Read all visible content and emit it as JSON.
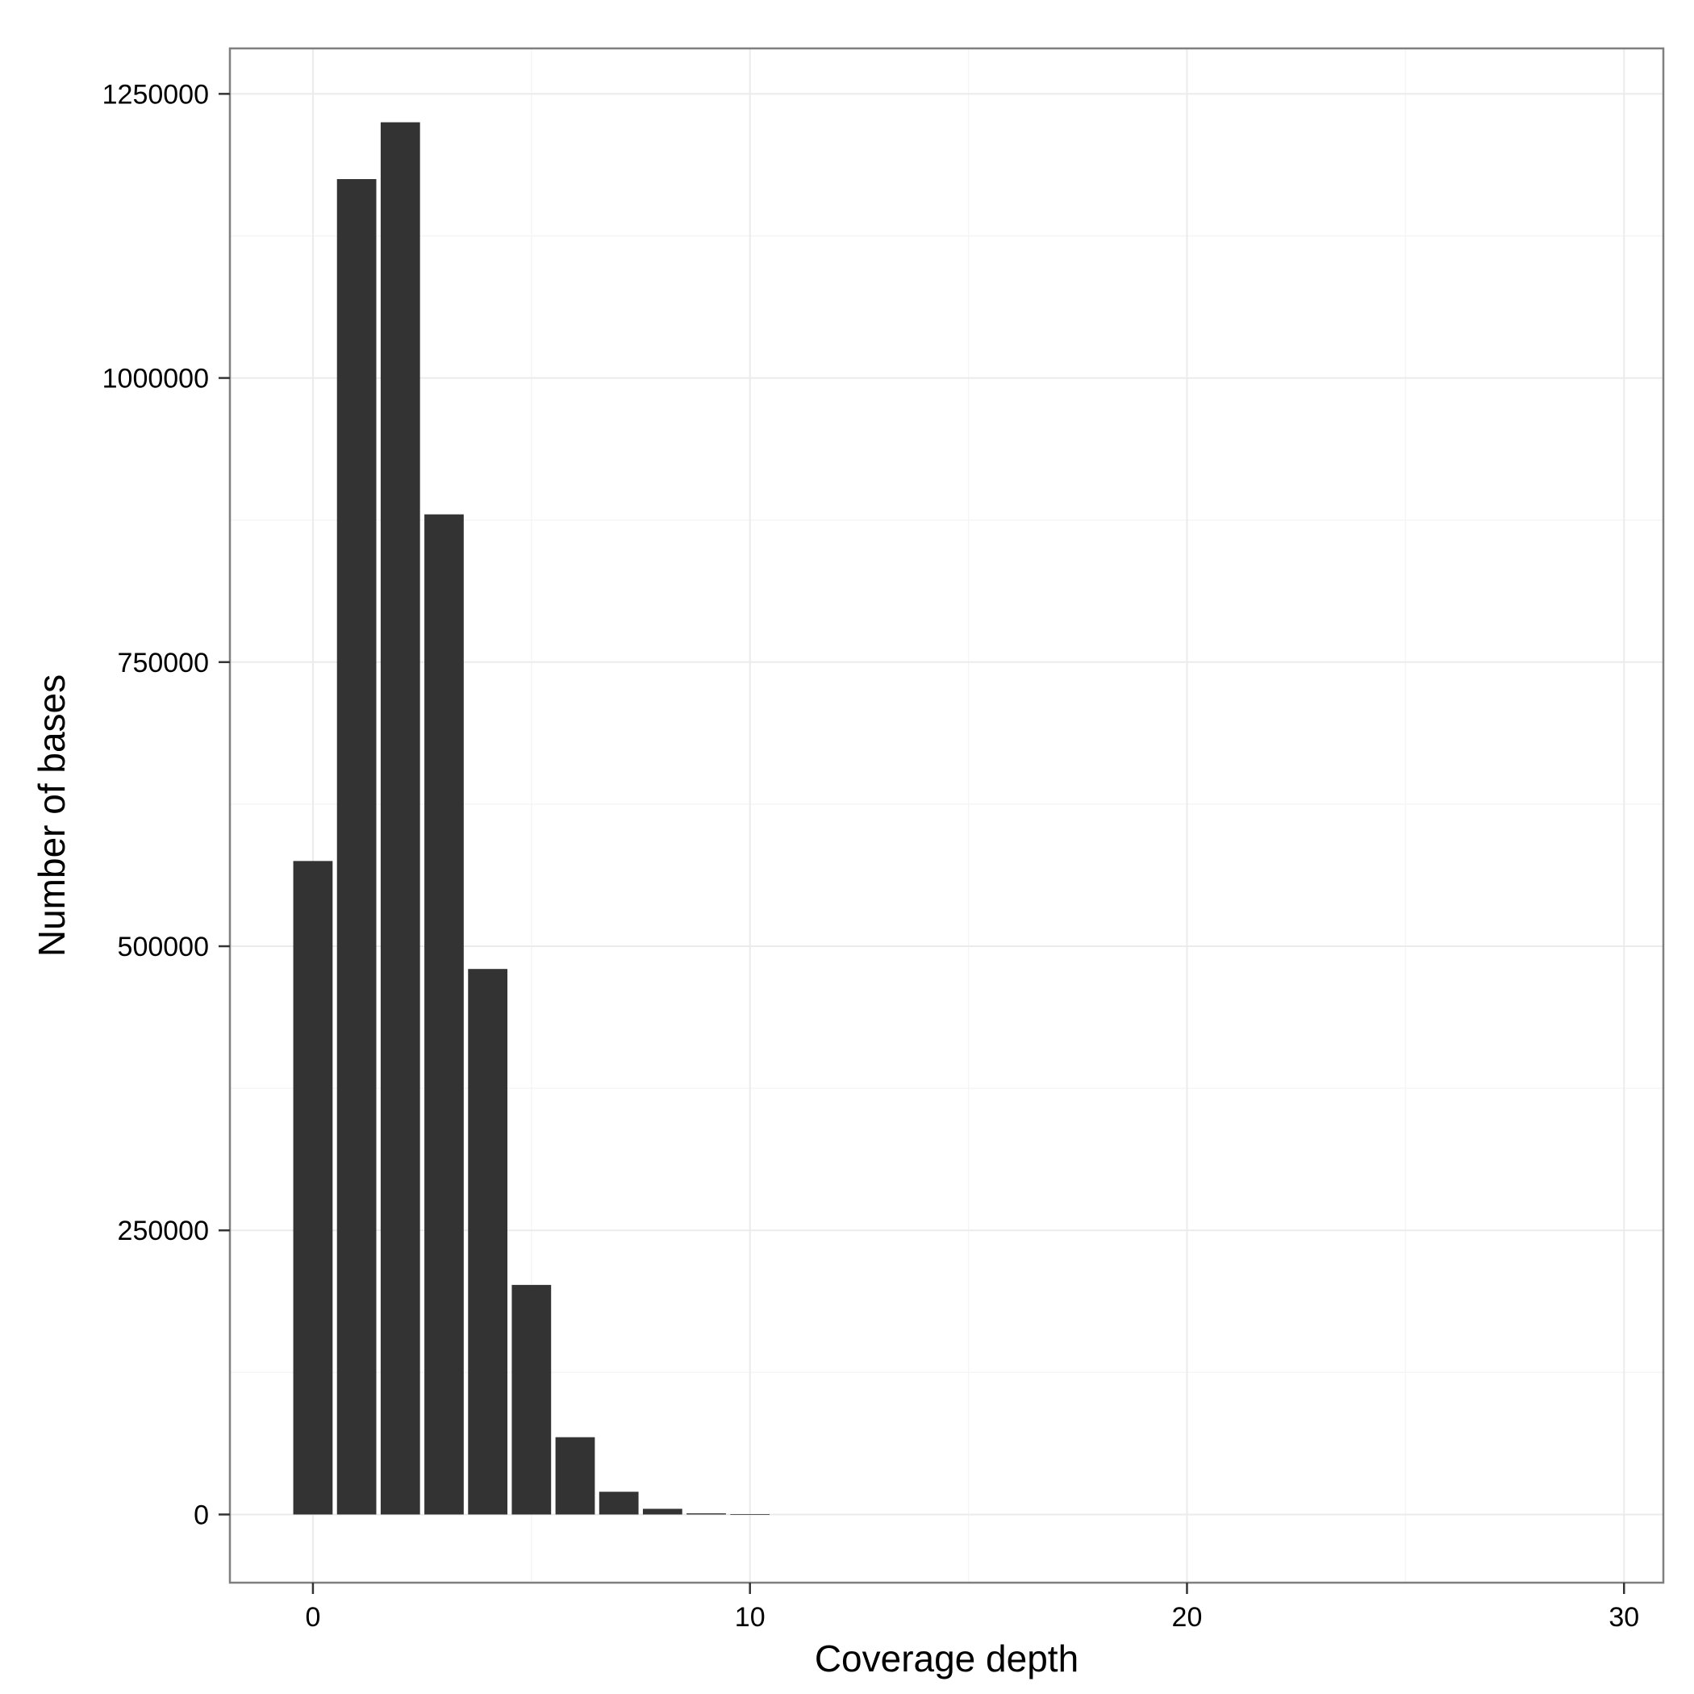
{
  "chart_data": {
    "type": "bar",
    "title": "",
    "xlabel": "Coverage depth",
    "ylabel": "Number of bases",
    "xlim": [
      -1.9,
      30.9
    ],
    "ylim": [
      -60000,
      1290000
    ],
    "x_ticks": [
      0,
      10,
      20,
      30
    ],
    "x_tick_labels": [
      "0",
      "10",
      "20",
      "30"
    ],
    "y_ticks": [
      0,
      250000,
      500000,
      750000,
      1000000,
      1250000
    ],
    "y_tick_labels": [
      "0",
      "250000",
      "500000",
      "750000",
      "1000000",
      "1250000"
    ],
    "grid": true,
    "legend": "none",
    "bar_width": 0.9,
    "x": [
      0,
      1,
      2,
      3,
      4,
      5,
      6,
      7,
      8,
      9,
      10
    ],
    "values": [
      575000,
      1175000,
      1225000,
      880000,
      480000,
      202000,
      68000,
      20000,
      5000,
      1000,
      300
    ],
    "colors": {
      "bar": "#333333",
      "panel_background": "#ffffff",
      "grid_major": "#ebebeb",
      "grid_minor": "#f5f5f5",
      "border": "#7f7f7f",
      "tick": "#333333"
    }
  }
}
